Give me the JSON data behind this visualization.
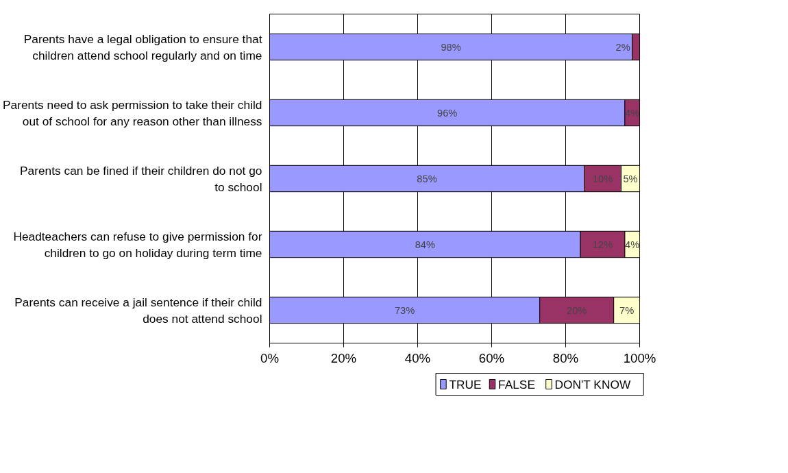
{
  "chart_data": {
    "type": "bar",
    "orientation": "horizontal",
    "stacked": true,
    "categories": [
      "Parents have a legal obligation to ensure that children attend school regularly and on time",
      "Parents need to ask permission to take their child out of school for any reason other than illness",
      "Parents can be fined if their children do not go to school",
      "Headteachers can refuse to give permission for children to go on holiday during term time",
      "Parents can receive a jail sentence if their child does not attend school"
    ],
    "series": [
      {
        "name": "TRUE",
        "color": "#9999ff",
        "values": [
          98,
          96,
          85,
          84,
          73
        ],
        "value_labels": [
          "98%",
          "96%",
          "85%",
          "84%",
          "73%"
        ]
      },
      {
        "name": "FALSE",
        "color": "#993366",
        "values": [
          2,
          4,
          10,
          12,
          20
        ],
        "value_labels": [
          "2%",
          "4%",
          "10%",
          "12%",
          "20%"
        ]
      },
      {
        "name": "DON'T KNOW",
        "color": "#ffffcc",
        "values": [
          null,
          null,
          5,
          4,
          7
        ],
        "value_labels": [
          null,
          null,
          "5%",
          "4%",
          "7%"
        ]
      }
    ],
    "xlim": [
      0,
      100
    ],
    "xticks": [
      {
        "value": 0,
        "label": "0%"
      },
      {
        "value": 20,
        "label": "20%"
      },
      {
        "value": 40,
        "label": "40%"
      },
      {
        "value": 60,
        "label": "60%"
      },
      {
        "value": 80,
        "label": "80%"
      },
      {
        "value": 100,
        "label": "100%"
      }
    ],
    "grid": "x",
    "legend": "bottom"
  }
}
